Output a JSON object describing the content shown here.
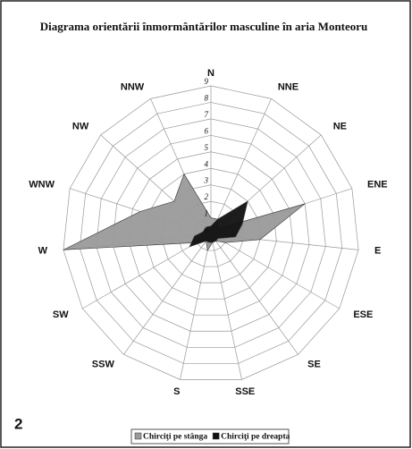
{
  "chart_data": {
    "type": "radar",
    "title": "Diagrama orientării înmormântărilor masculine în aria Monteoru",
    "figure_number": "2",
    "categories": [
      "N",
      "NNE",
      "NE",
      "ENE",
      "E",
      "ESE",
      "SE",
      "SSE",
      "S",
      "SSW",
      "SW",
      "W",
      "WNW",
      "NW",
      "NNW"
    ],
    "rlim": [
      0,
      9
    ],
    "rticks": [
      0,
      1,
      2,
      3,
      4,
      5,
      6,
      7,
      8,
      9
    ],
    "grid": true,
    "series": [
      {
        "name": "Chirciţi pe stânga",
        "color": "#9a9a9a",
        "values": [
          1,
          1,
          0.5,
          6,
          3,
          1,
          0.5,
          0.5,
          1,
          0.5,
          1,
          9,
          4.5,
          3,
          4
        ]
      },
      {
        "name": "Chirciţi pe dreapta",
        "color": "#111111",
        "values": [
          0.5,
          1,
          3,
          2,
          1.5,
          0.5,
          0.5,
          0.5,
          0.5,
          0.5,
          1.5,
          1,
          0.5,
          0.5,
          0.5
        ]
      }
    ]
  }
}
